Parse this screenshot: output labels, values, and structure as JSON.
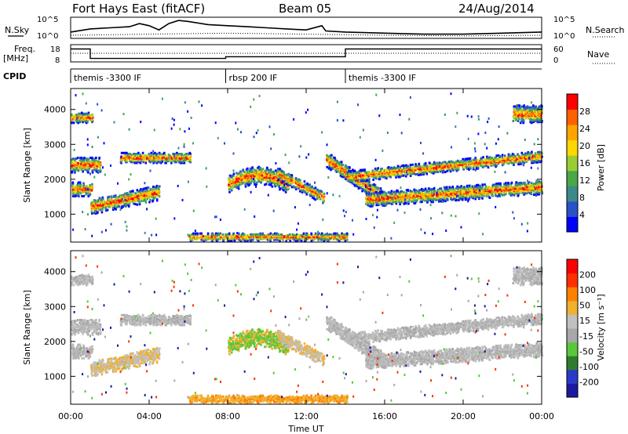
{
  "header": {
    "site": "Fort Hays East (fitACF)",
    "beam": "Beam 05",
    "date": "24/Aug/2014"
  },
  "noise_panel": {
    "left_label": "N.Sky",
    "right_label": "N.Search",
    "left_ticks": [
      "10^5",
      "10^0"
    ],
    "right_ticks": [
      "10^5",
      "10^0"
    ]
  },
  "freq_panel": {
    "left_label_line1": "Freq.",
    "left_label_line2": "[MHz]",
    "right_label": "Nave",
    "left_ticks": [
      "18",
      "8"
    ],
    "right_ticks": [
      "60",
      "0"
    ]
  },
  "cpid_panel": {
    "label": "CPID",
    "segments": [
      {
        "start_hour": 0,
        "end_hour": 7.9,
        "text": "themis -3300 IF"
      },
      {
        "start_hour": 7.9,
        "end_hour": 14.0,
        "text": "rbsp 200 IF"
      },
      {
        "start_hour": 14.0,
        "end_hour": 24,
        "text": "themis -3300 IF"
      }
    ]
  },
  "time_axis": {
    "label": "Time UT",
    "ticks": [
      "00:00",
      "04:00",
      "08:00",
      "12:00",
      "16:00",
      "20:00",
      "00:00"
    ],
    "tick_hours": [
      0,
      4,
      8,
      12,
      16,
      20,
      24
    ]
  },
  "chart_data": [
    {
      "type": "heatmap",
      "quantity": "power",
      "ylabel": "Slant Range [km]",
      "yticks": [
        1000,
        2000,
        3000,
        4000
      ],
      "ylim": [
        200,
        4600
      ],
      "xlim": [
        0,
        24
      ],
      "colorbar_label": "Power [dB]",
      "colorbar_ticks": [
        4,
        8,
        12,
        16,
        20,
        24,
        28
      ],
      "colorbar_range": [
        0,
        32
      ],
      "colorbar_colors": [
        "#0000ff",
        "#2a52c8",
        "#3d8a8a",
        "#48a848",
        "#9acd32",
        "#ffd700",
        "#ffa500",
        "#ff6000",
        "#ff0000"
      ]
    },
    {
      "type": "heatmap",
      "quantity": "velocity",
      "ylabel": "Slant Range [km]",
      "yticks": [
        1000,
        2000,
        3000,
        4000
      ],
      "ylim": [
        200,
        4600
      ],
      "xlim": [
        0,
        24
      ],
      "colorbar_label": "Velocity [m s⁻¹]",
      "colorbar_ticks": [
        "200",
        "100",
        "50",
        "15",
        "-15",
        "-50",
        "-100",
        "-200"
      ],
      "colorbar_colors": [
        "#1a1aa0",
        "#2a3ac8",
        "#2f7c2f",
        "#58c83a",
        "#a8a8a8",
        "#c0c0c0",
        "#f0b030",
        "#ff8000",
        "#ff3000",
        "#ff0000"
      ]
    }
  ],
  "noise_levels": {
    "sky_trace": [
      [
        0,
        0.3
      ],
      [
        1,
        0.45
      ],
      [
        2,
        0.5
      ],
      [
        3,
        0.55
      ],
      [
        3.5,
        0.7
      ],
      [
        4,
        0.6
      ],
      [
        4.5,
        0.4
      ],
      [
        5,
        0.7
      ],
      [
        5.5,
        0.85
      ],
      [
        6,
        0.8
      ],
      [
        7,
        0.65
      ],
      [
        8,
        0.6
      ],
      [
        9,
        0.55
      ],
      [
        10,
        0.5
      ],
      [
        11,
        0.45
      ],
      [
        12,
        0.4
      ],
      [
        12.8,
        0.6
      ],
      [
        13,
        0.35
      ],
      [
        14,
        0.3
      ],
      [
        16,
        0.25
      ],
      [
        18,
        0.2
      ],
      [
        20,
        0.2
      ],
      [
        22,
        0.25
      ],
      [
        24,
        0.3
      ]
    ],
    "search_trace": [
      [
        0,
        0.15
      ],
      [
        4,
        0.2
      ],
      [
        8,
        0.25
      ],
      [
        12,
        0.2
      ],
      [
        16,
        0.15
      ],
      [
        20,
        0.12
      ],
      [
        24,
        0.15
      ]
    ]
  },
  "freq_levels": {
    "freq_trace": [
      [
        0,
        0.75
      ],
      [
        1,
        0.75
      ],
      [
        1,
        0.2
      ],
      [
        7.9,
        0.2
      ],
      [
        7.9,
        0.3
      ],
      [
        14,
        0.3
      ],
      [
        14,
        0.75
      ],
      [
        24,
        0.75
      ]
    ],
    "nave_trace": [
      [
        0,
        0.5
      ],
      [
        24,
        0.5
      ]
    ]
  }
}
